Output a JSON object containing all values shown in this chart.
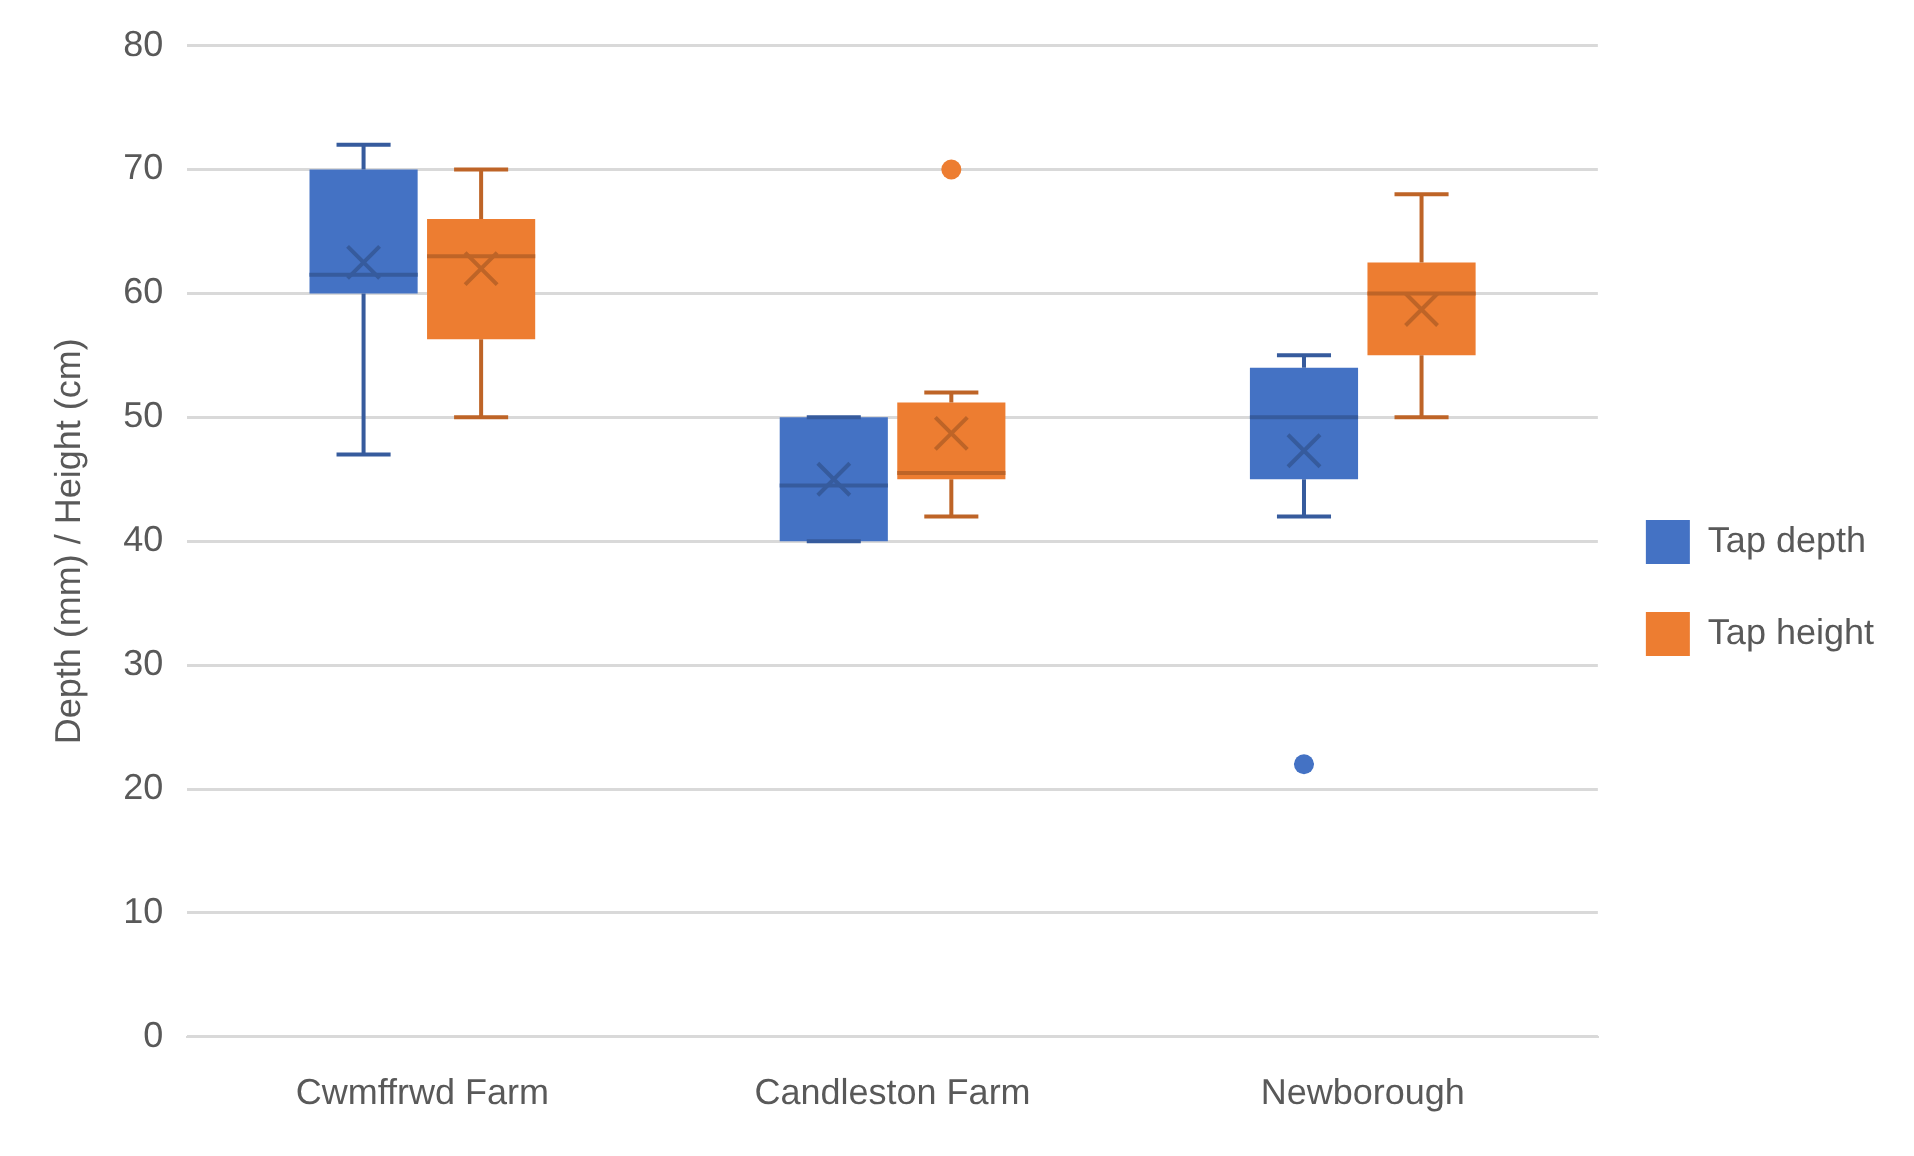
{
  "chart_data": {
    "type": "box",
    "categories": [
      "Cwmffrwd Farm",
      "Candleston Farm",
      "Newborough"
    ],
    "ylabel": "Depth (mm) / Height (cm)",
    "ylim": [
      0,
      80
    ],
    "yticks": [
      0,
      10,
      20,
      30,
      40,
      50,
      60,
      70,
      80
    ],
    "grid": "y",
    "legend": "right",
    "series": [
      {
        "name": "Tap depth",
        "color": "#4472c4",
        "boxes": [
          {
            "low": 47,
            "q1": 60,
            "median": 61.5,
            "q3": 70,
            "high": 72,
            "mean": 62.5
          },
          {
            "low": 40,
            "q1": 40,
            "median": 44.5,
            "q3": 50,
            "high": 50,
            "mean": 45
          },
          {
            "low": 42,
            "q1": 45,
            "median": 50,
            "q3": 54,
            "high": 55,
            "mean": 47.3,
            "outliers": [
              22
            ]
          }
        ]
      },
      {
        "name": "Tap height",
        "color": "#ed7d31",
        "boxes": [
          {
            "low": 50,
            "q1": 56.3,
            "median": 63,
            "q3": 66,
            "high": 70,
            "mean": 62
          },
          {
            "low": 42,
            "q1": 45,
            "median": 45.5,
            "q3": 51.2,
            "high": 52,
            "mean": 48.7,
            "outliers": [
              70
            ]
          },
          {
            "low": 50,
            "q1": 55,
            "median": 60,
            "q3": 62.5,
            "high": 68,
            "mean": 58.7
          }
        ]
      }
    ]
  }
}
